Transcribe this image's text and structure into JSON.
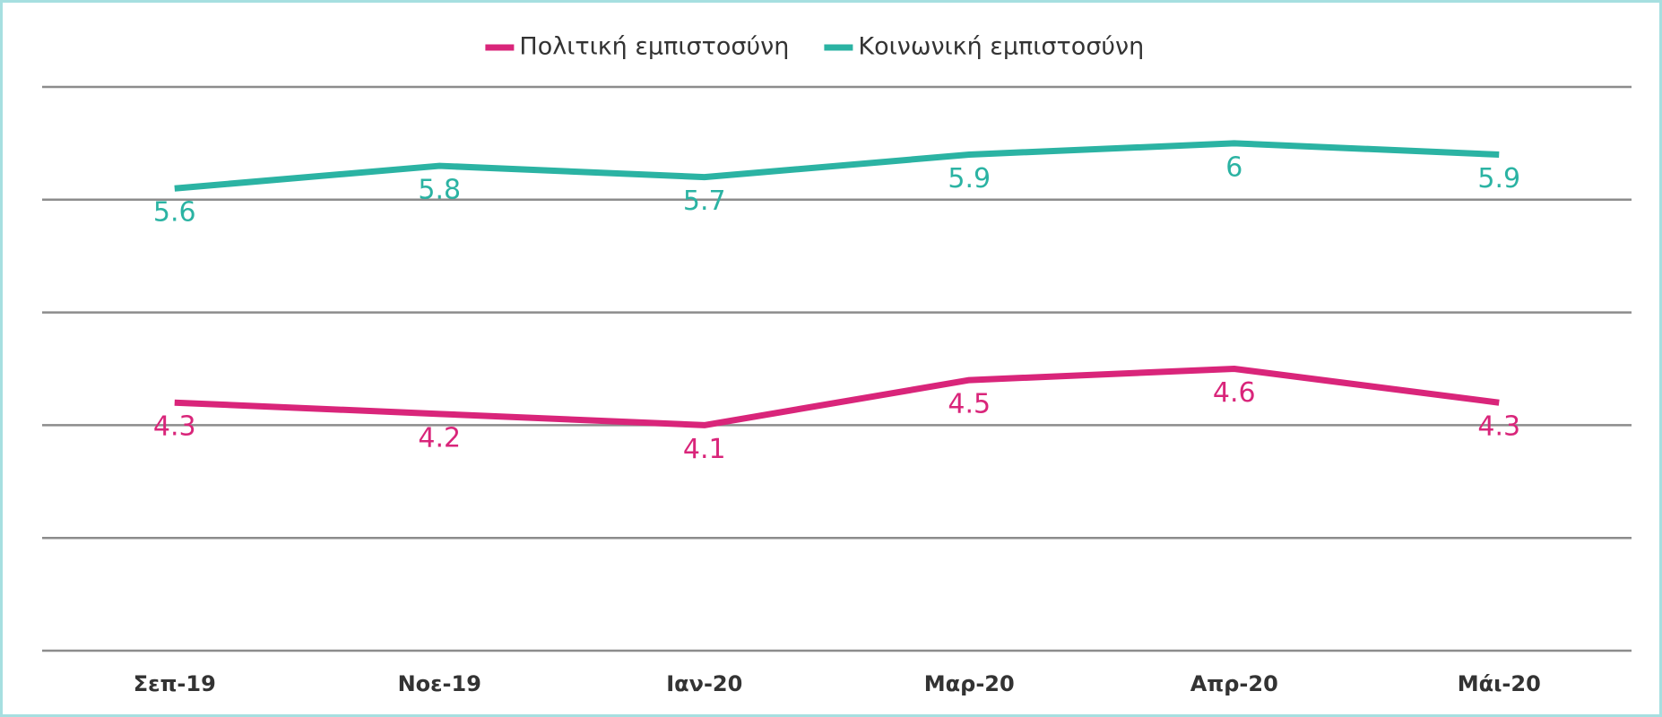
{
  "chart_data": {
    "type": "line",
    "categories": [
      "Σεπ-19",
      "Νοε-19",
      "Ιαν-20",
      "Μαρ-20",
      "Απρ-20",
      "Μάι-20"
    ],
    "series": [
      {
        "name": "Πολιτική εμπιστοσύνη",
        "color": "#d9257a",
        "values": [
          4.3,
          4.2,
          4.1,
          4.5,
          4.6,
          4.3
        ]
      },
      {
        "name": "Κοινωνική εμπιστοσύνη",
        "color": "#2bb3a3",
        "axis": "y2",
        "values": [
          5.6,
          5.8,
          5.7,
          5.9,
          6,
          5.9
        ]
      }
    ],
    "ylim": [
      2.1,
      7.1
    ],
    "yticks": [
      2.1,
      3.1,
      4.1,
      5.1,
      6.1,
      7.1
    ],
    "y2lim": [
      1.5,
      6.5
    ],
    "grid": true,
    "legend": "top"
  }
}
